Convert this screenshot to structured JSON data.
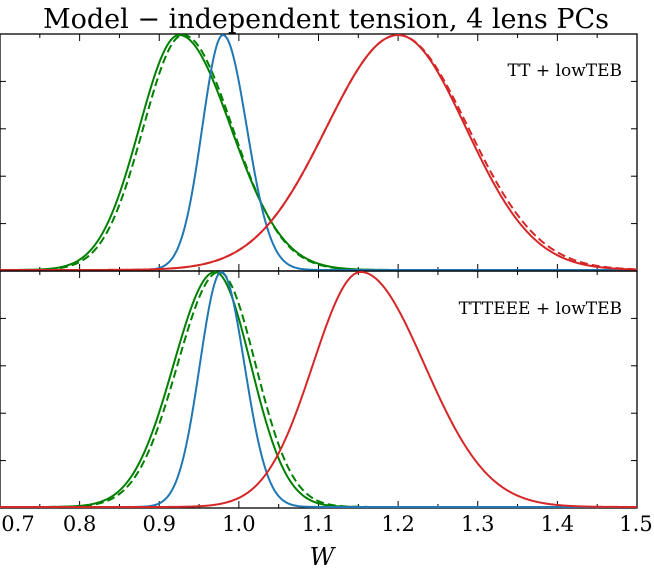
{
  "chart_data": {
    "type": "line",
    "title": "Model − independent tension, 4 lens PCs",
    "xlabel": "W",
    "ylabel": "",
    "xlim": [
      0.7,
      1.5
    ],
    "xticks": [
      "0.7",
      "0.8",
      "0.9",
      "1.0",
      "1.1",
      "1.2",
      "1.3",
      "1.4",
      "1.5"
    ],
    "yticks_shown": false,
    "colors": {
      "green": "#008000",
      "blue": "#1f77b4",
      "red": "#d62728"
    },
    "panels": [
      {
        "label": "TT + lowTEB",
        "series": [
          {
            "color": "green",
            "style": "solid",
            "peak": 0.925,
            "sigma_left": 0.05,
            "sigma_right": 0.065
          },
          {
            "color": "green",
            "style": "dashed",
            "peak": 0.93,
            "sigma_left": 0.05,
            "sigma_right": 0.062
          },
          {
            "color": "blue",
            "style": "solid",
            "peak": 0.98,
            "sigma_left": 0.026,
            "sigma_right": 0.03
          },
          {
            "color": "red",
            "style": "solid",
            "peak": 1.2,
            "sigma_left": 0.09,
            "sigma_right": 0.085
          },
          {
            "color": "red",
            "style": "dashed",
            "peak": 1.2,
            "sigma_left": 0.09,
            "sigma_right": 0.088
          }
        ]
      },
      {
        "label": "TTTEEE + lowTEB",
        "series": [
          {
            "color": "green",
            "style": "solid",
            "peak": 0.97,
            "sigma_left": 0.052,
            "sigma_right": 0.045
          },
          {
            "color": "green",
            "style": "dashed",
            "peak": 0.975,
            "sigma_left": 0.052,
            "sigma_right": 0.046
          },
          {
            "color": "blue",
            "style": "solid",
            "peak": 0.978,
            "sigma_left": 0.027,
            "sigma_right": 0.029
          },
          {
            "color": "red",
            "style": "solid",
            "peak": 1.153,
            "sigma_left": 0.06,
            "sigma_right": 0.08
          }
        ]
      }
    ]
  }
}
